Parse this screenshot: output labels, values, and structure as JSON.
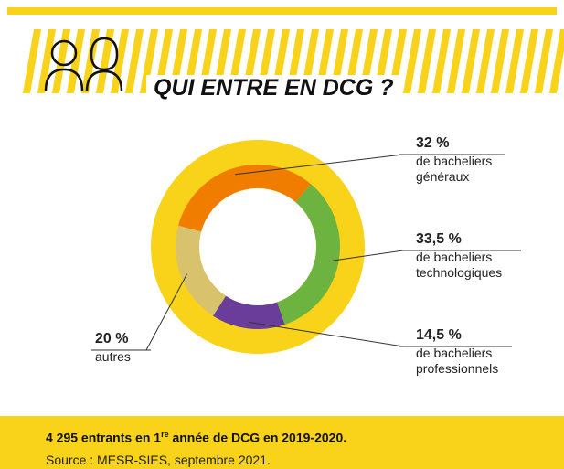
{
  "chart_data": {
    "type": "donut",
    "title": "QUI ENTRE EN DCG ?",
    "categories": [
      "de bacheliers généraux",
      "de bacheliers technologiques",
      "de bacheliers professionnels",
      "autres"
    ],
    "values": [
      32,
      33.5,
      14.5,
      20
    ],
    "value_labels": [
      "32 %",
      "33,5 %",
      "14,5 %",
      "20 %"
    ],
    "colors": [
      "#f07d00",
      "#6db33f",
      "#6a3d9a",
      "#d8c36c"
    ],
    "ring_color": "#f9d21a",
    "footer": {
      "parts": [
        "4 295 entrants en 1",
        "re",
        " année de DCG en 2019-2020."
      ],
      "source": "Source : MESR-SIES, septembre 2021."
    }
  }
}
